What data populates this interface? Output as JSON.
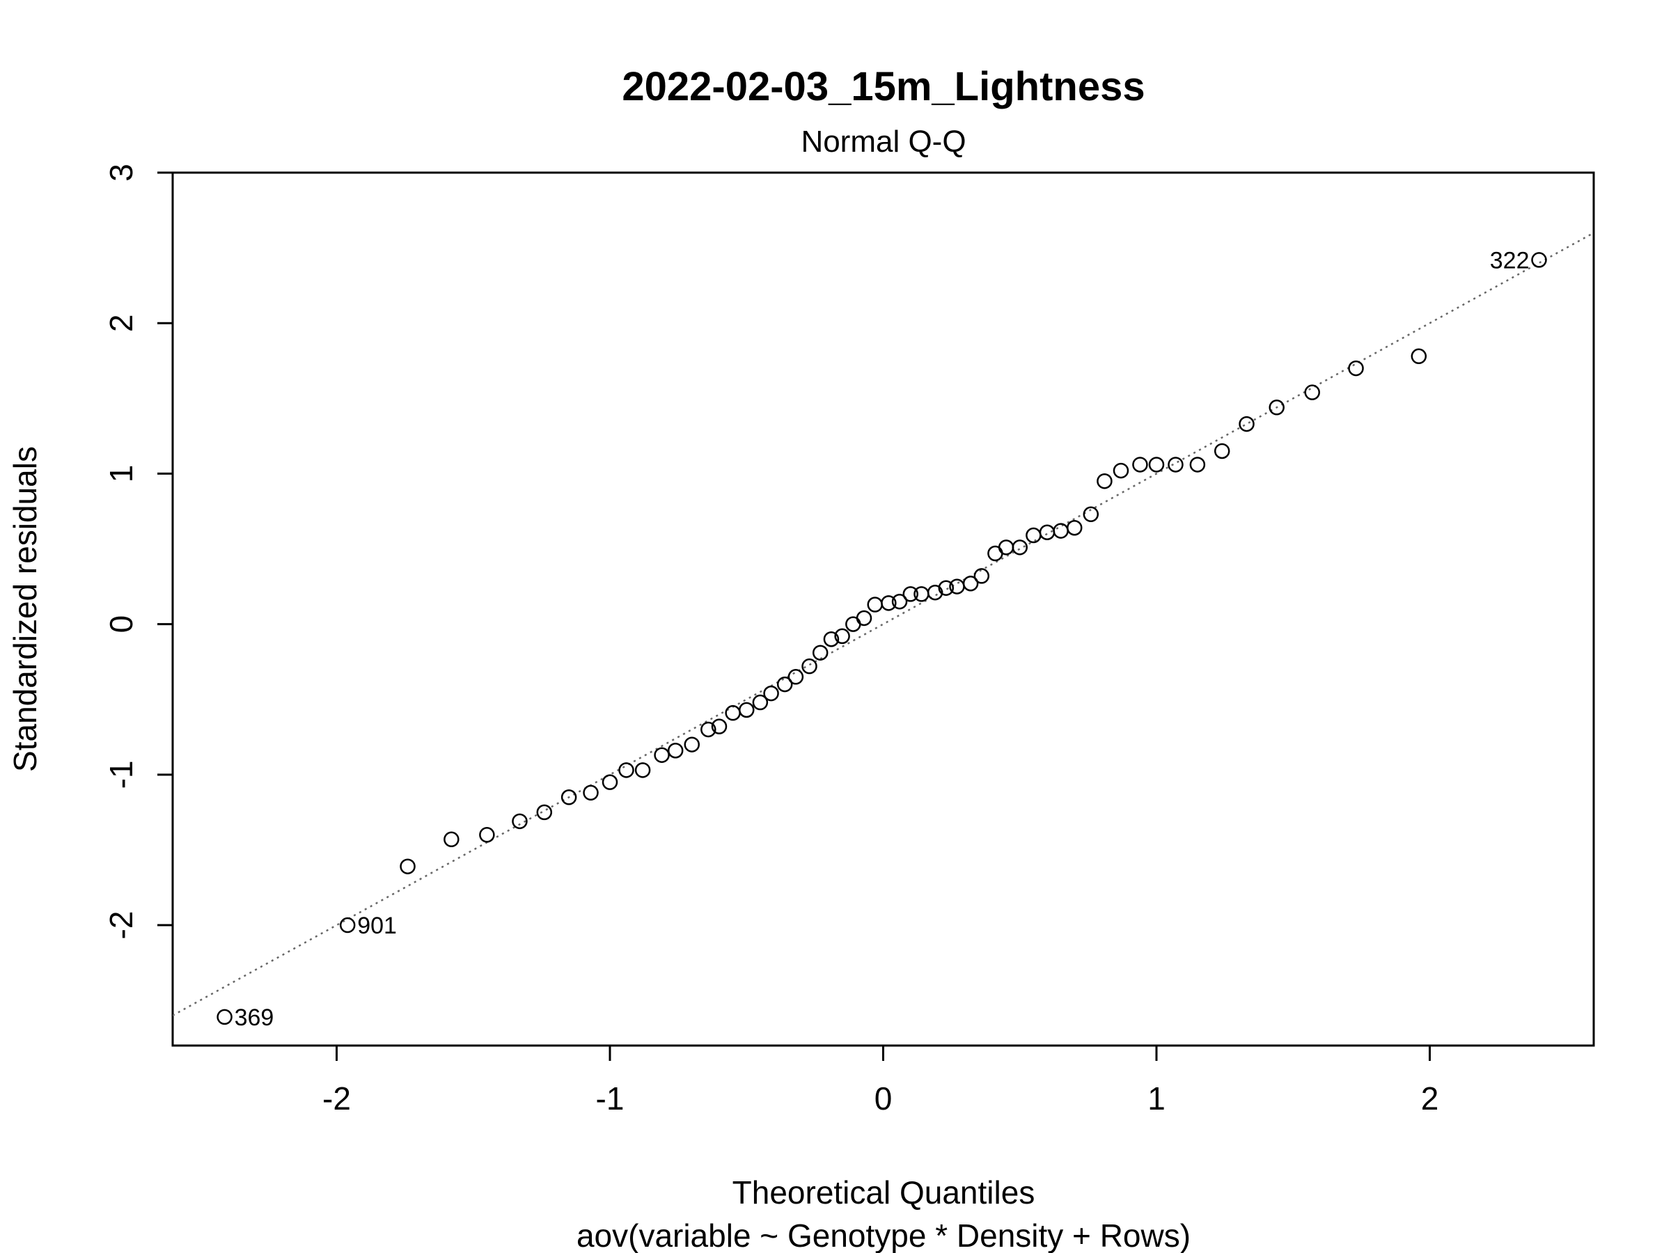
{
  "chart_data": {
    "type": "scatter",
    "title": "2022-02-03_15m_Lightness",
    "subtitle": "Normal Q-Q",
    "xlabel": "Theoretical Quantiles",
    "xlabel2": "aov(variable ~ Genotype * Density + Rows)",
    "ylabel": "Standardized residuals",
    "xlim": [
      -2.6,
      2.6
    ],
    "ylim": [
      -2.8,
      3.0
    ],
    "xticks": [
      -2,
      -1,
      0,
      1,
      2
    ],
    "yticks": [
      -2,
      -1,
      0,
      1,
      2,
      3
    ],
    "xtick_labels": [
      "-2",
      "-1",
      "0",
      "1",
      "2"
    ],
    "ytick_labels": [
      "-2",
      "-1",
      "0",
      "1",
      "2",
      "3"
    ],
    "grid": false,
    "reference_line": {
      "intercept": 0.0,
      "slope": 1.0,
      "style": "dotted",
      "color": "#666666"
    },
    "point_color": "#000000",
    "points": [
      {
        "x": -2.41,
        "y": -2.61,
        "label": "369"
      },
      {
        "x": -1.96,
        "y": -2.0,
        "label": "901"
      },
      {
        "x": -1.74,
        "y": -1.61
      },
      {
        "x": -1.58,
        "y": -1.43
      },
      {
        "x": -1.45,
        "y": -1.4
      },
      {
        "x": -1.33,
        "y": -1.31
      },
      {
        "x": -1.24,
        "y": -1.25
      },
      {
        "x": -1.15,
        "y": -1.15
      },
      {
        "x": -1.07,
        "y": -1.12
      },
      {
        "x": -1.0,
        "y": -1.05
      },
      {
        "x": -0.94,
        "y": -0.97
      },
      {
        "x": -0.88,
        "y": -0.97
      },
      {
        "x": -0.81,
        "y": -0.87
      },
      {
        "x": -0.76,
        "y": -0.84
      },
      {
        "x": -0.7,
        "y": -0.8
      },
      {
        "x": -0.64,
        "y": -0.7
      },
      {
        "x": -0.6,
        "y": -0.68
      },
      {
        "x": -0.55,
        "y": -0.59
      },
      {
        "x": -0.5,
        "y": -0.57
      },
      {
        "x": -0.45,
        "y": -0.52
      },
      {
        "x": -0.41,
        "y": -0.46
      },
      {
        "x": -0.36,
        "y": -0.4
      },
      {
        "x": -0.32,
        "y": -0.35
      },
      {
        "x": -0.27,
        "y": -0.28
      },
      {
        "x": -0.23,
        "y": -0.19
      },
      {
        "x": -0.19,
        "y": -0.1
      },
      {
        "x": -0.15,
        "y": -0.08
      },
      {
        "x": -0.11,
        "y": 0.0
      },
      {
        "x": -0.07,
        "y": 0.04
      },
      {
        "x": -0.03,
        "y": 0.13
      },
      {
        "x": 0.02,
        "y": 0.14
      },
      {
        "x": 0.06,
        "y": 0.15
      },
      {
        "x": 0.1,
        "y": 0.2
      },
      {
        "x": 0.14,
        "y": 0.2
      },
      {
        "x": 0.19,
        "y": 0.21
      },
      {
        "x": 0.23,
        "y": 0.24
      },
      {
        "x": 0.27,
        "y": 0.25
      },
      {
        "x": 0.32,
        "y": 0.27
      },
      {
        "x": 0.36,
        "y": 0.32
      },
      {
        "x": 0.41,
        "y": 0.47
      },
      {
        "x": 0.45,
        "y": 0.51
      },
      {
        "x": 0.5,
        "y": 0.51
      },
      {
        "x": 0.55,
        "y": 0.59
      },
      {
        "x": 0.6,
        "y": 0.61
      },
      {
        "x": 0.65,
        "y": 0.62
      },
      {
        "x": 0.7,
        "y": 0.64
      },
      {
        "x": 0.76,
        "y": 0.73
      },
      {
        "x": 0.81,
        "y": 0.95
      },
      {
        "x": 0.87,
        "y": 1.02
      },
      {
        "x": 0.94,
        "y": 1.06
      },
      {
        "x": 1.0,
        "y": 1.06
      },
      {
        "x": 1.07,
        "y": 1.06
      },
      {
        "x": 1.15,
        "y": 1.06
      },
      {
        "x": 1.24,
        "y": 1.15
      },
      {
        "x": 1.33,
        "y": 1.33
      },
      {
        "x": 1.44,
        "y": 1.44
      },
      {
        "x": 1.57,
        "y": 1.54
      },
      {
        "x": 1.73,
        "y": 1.7
      },
      {
        "x": 1.96,
        "y": 1.78
      },
      {
        "x": 2.4,
        "y": 2.42,
        "label": "322"
      }
    ]
  }
}
